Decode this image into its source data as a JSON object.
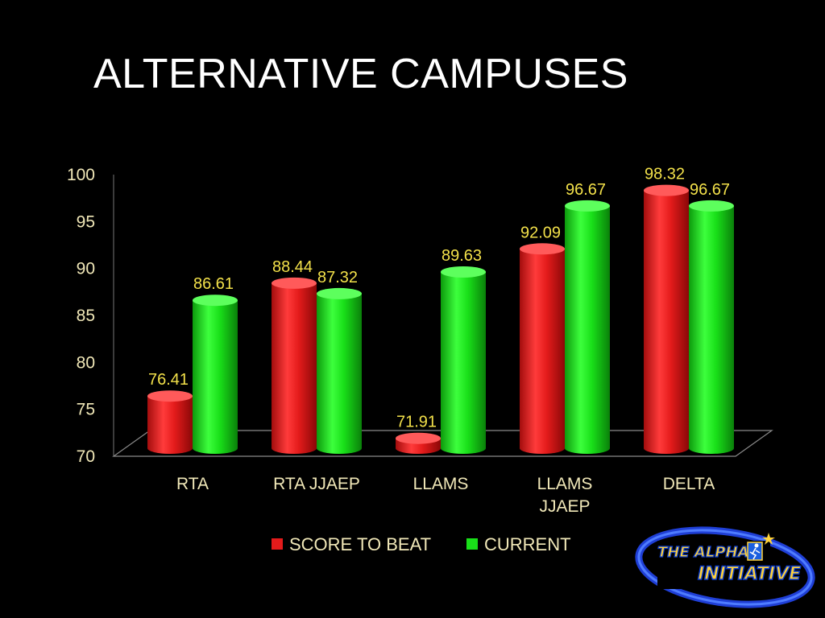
{
  "slide": {
    "title": "ALTERNATIVE CAMPUSES"
  },
  "logo": {
    "line1": "THE ALPHA",
    "line2": "INITIATIVE"
  },
  "chart_data": {
    "type": "bar",
    "title": "",
    "xlabel": "",
    "ylabel": "",
    "ylim": [
      70,
      100
    ],
    "yticks": [
      70,
      75,
      80,
      85,
      90,
      95,
      100
    ],
    "categories": [
      [
        "RTA"
      ],
      [
        "RTA JJAEP"
      ],
      [
        "LLAMS"
      ],
      [
        "LLAMS",
        "JJAEP"
      ],
      [
        "DELTA"
      ]
    ],
    "series": [
      {
        "name": "SCORE TO BEAT",
        "color": "#e41b1b",
        "values": [
          76.41,
          88.44,
          71.91,
          92.09,
          98.32
        ]
      },
      {
        "name": "CURRENT",
        "color": "#19e019",
        "values": [
          86.61,
          87.32,
          89.63,
          96.67,
          96.67
        ]
      }
    ],
    "legend": "bottom",
    "grid": false,
    "style": "3d-cylinder"
  }
}
